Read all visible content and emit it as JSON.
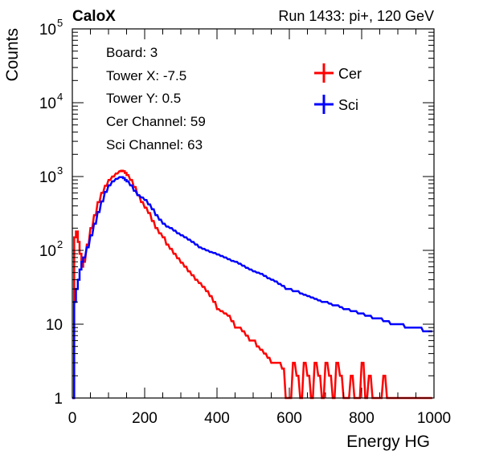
{
  "header": {
    "left_label": "CaloX",
    "right_label": "Run 1433: pi+, 120 GeV"
  },
  "info_box": {
    "lines": [
      "Board: 3",
      "Tower X: -7.5",
      "Tower Y: 0.5",
      "Cer Channel: 59",
      "Sci Channel: 63"
    ]
  },
  "chart_data": {
    "type": "line",
    "style": "step-histogram",
    "xlabel": "Energy HG",
    "ylabel": "Counts",
    "xlim": [
      0,
      1000
    ],
    "ylim": [
      1,
      100000
    ],
    "y_scale": "log",
    "x_ticks": [
      0,
      200,
      400,
      600,
      800,
      1000
    ],
    "y_ticks": [
      {
        "value": 1,
        "label": "1"
      },
      {
        "value": 10,
        "label": "10"
      },
      {
        "value": 100,
        "label": "10",
        "exp": "2"
      },
      {
        "value": 1000,
        "label": "10",
        "exp": "3"
      },
      {
        "value": 10000,
        "label": "10",
        "exp": "4"
      },
      {
        "value": 100000,
        "label": "10",
        "exp": "5"
      }
    ],
    "legend_position": "top-right",
    "series": [
      {
        "name": "Cer",
        "color": "#ff0000",
        "x": [
          0,
          5,
          10,
          15,
          20,
          25,
          30,
          40,
          50,
          60,
          70,
          80,
          90,
          100,
          110,
          120,
          130,
          135,
          140,
          145,
          150,
          160,
          170,
          180,
          190,
          200,
          210,
          220,
          230,
          240,
          250,
          260,
          270,
          280,
          290,
          300,
          310,
          320,
          330,
          340,
          350,
          360,
          370,
          380,
          390,
          400,
          410,
          420,
          430,
          440,
          450,
          460,
          470,
          480,
          490,
          500,
          510,
          520,
          530,
          540,
          550,
          560,
          570,
          580,
          590,
          600,
          610,
          620,
          630,
          640,
          650,
          660,
          670,
          680,
          690,
          700,
          710,
          720,
          730,
          740,
          750,
          760,
          770,
          780,
          790,
          800,
          810,
          820,
          830,
          840,
          850,
          860,
          870,
          880,
          890,
          900,
          910,
          920,
          930,
          940,
          950,
          960,
          970,
          980,
          990
        ],
        "values": [
          1,
          150,
          180,
          130,
          90,
          60,
          70,
          120,
          200,
          300,
          450,
          600,
          750,
          900,
          1000,
          1100,
          1180,
          1200,
          1180,
          1120,
          1050,
          900,
          720,
          560,
          450,
          380,
          320,
          250,
          200,
          170,
          150,
          120,
          105,
          90,
          78,
          68,
          60,
          52,
          46,
          40,
          36,
          32,
          28,
          24,
          20,
          16,
          15,
          14,
          13,
          11,
          9,
          9,
          8,
          7,
          6,
          6,
          5,
          4.5,
          4,
          3.5,
          3,
          3,
          3,
          2.5,
          1,
          1,
          3,
          2,
          1,
          3,
          2,
          1,
          3,
          2,
          1,
          3,
          2,
          1,
          3,
          2,
          1,
          1,
          2,
          1,
          1,
          3,
          1,
          2,
          1,
          1,
          1,
          2,
          1,
          1,
          1,
          1,
          1,
          1,
          1,
          1,
          1,
          1,
          1,
          1,
          1
        ]
      },
      {
        "name": "Sci",
        "color": "#0000ff",
        "x": [
          0,
          5,
          10,
          15,
          20,
          25,
          30,
          40,
          50,
          60,
          70,
          80,
          90,
          100,
          110,
          120,
          130,
          135,
          140,
          145,
          150,
          160,
          170,
          180,
          190,
          200,
          210,
          220,
          230,
          240,
          250,
          260,
          270,
          280,
          290,
          300,
          310,
          320,
          330,
          340,
          350,
          360,
          370,
          380,
          390,
          400,
          410,
          420,
          430,
          440,
          450,
          460,
          470,
          480,
          490,
          500,
          510,
          520,
          530,
          540,
          550,
          560,
          570,
          580,
          590,
          600,
          610,
          620,
          630,
          640,
          650,
          660,
          670,
          680,
          690,
          700,
          710,
          720,
          730,
          740,
          750,
          760,
          770,
          780,
          790,
          800,
          810,
          820,
          830,
          840,
          850,
          860,
          870,
          880,
          890,
          900,
          910,
          920,
          930,
          940,
          950,
          960,
          970,
          980,
          990
        ],
        "values": [
          1,
          20,
          30,
          40,
          55,
          70,
          80,
          110,
          160,
          230,
          330,
          460,
          620,
          760,
          860,
          930,
          980,
          980,
          950,
          900,
          860,
          760,
          640,
          560,
          520,
          480,
          420,
          360,
          300,
          260,
          230,
          210,
          200,
          185,
          170,
          160,
          150,
          140,
          130,
          120,
          110,
          105,
          100,
          95,
          92,
          88,
          84,
          80,
          76,
          72,
          70,
          66,
          62,
          58,
          55,
          52,
          50,
          48,
          45,
          42,
          40,
          38,
          35,
          33,
          30,
          30,
          28,
          28,
          26,
          25,
          24,
          23,
          22,
          21,
          20,
          20,
          19,
          18,
          18,
          17,
          16,
          16,
          15,
          15,
          14,
          14,
          13,
          13,
          12,
          12,
          12,
          11,
          11,
          10,
          10,
          10,
          10,
          9,
          9,
          9,
          9,
          9,
          8,
          8,
          8
        ]
      }
    ]
  }
}
